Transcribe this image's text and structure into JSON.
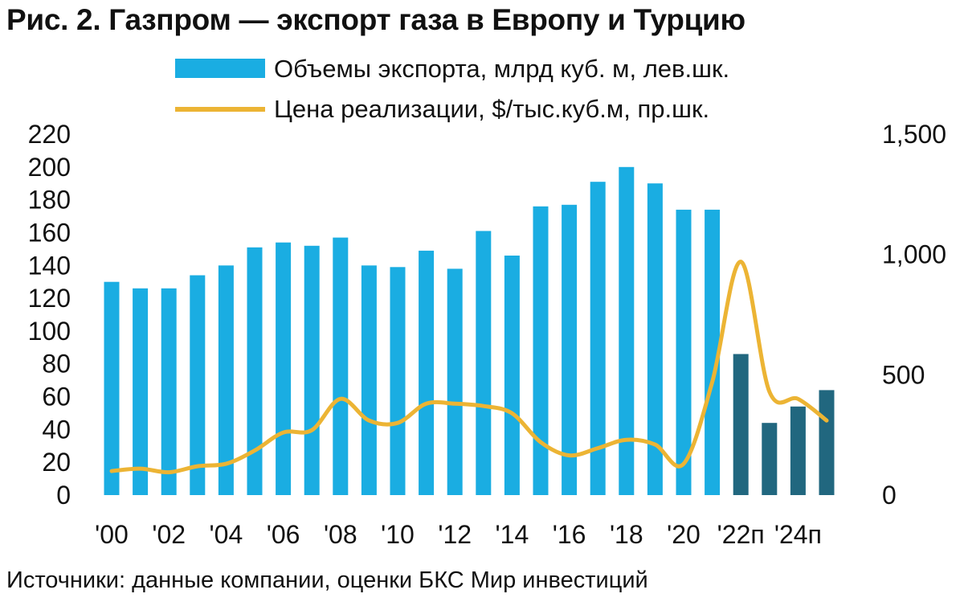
{
  "title": "Рис. 2. Газпром — экспорт газа в Европу и Турцию",
  "source": "Источники: данные компании, оценки БКС Мир инвестиций",
  "chart_data": {
    "type": "bar",
    "title": "Рис. 2. Газпром — экспорт газа в Европу и Турцию",
    "legend_position": "top",
    "grid": false,
    "x": [
      "2000",
      "2001",
      "2002",
      "2003",
      "2004",
      "2005",
      "2006",
      "2007",
      "2008",
      "2009",
      "2010",
      "2011",
      "2012",
      "2013",
      "2014",
      "2015",
      "2016",
      "2017",
      "2018",
      "2019",
      "2020",
      "2021",
      "2022",
      "2023",
      "2024",
      "2025"
    ],
    "x_tick_labels": [
      "'00",
      "'02",
      "'04",
      "'06",
      "'08",
      "'10",
      "'12",
      "'14",
      "'16",
      "'18",
      "'20",
      "'22п",
      "'24п"
    ],
    "forecast_from": "2022",
    "y_left": {
      "ylim": [
        0,
        220
      ],
      "ticks": [
        "0",
        "20",
        "40",
        "60",
        "80",
        "100",
        "120",
        "140",
        "160",
        "180",
        "200",
        "220"
      ]
    },
    "y_right": {
      "ylim": [
        0,
        1500
      ],
      "ticks": [
        "0",
        "500",
        "1,000",
        "1,500"
      ]
    },
    "series": [
      {
        "name": "Объемы экспорта, млрд куб. м, лев.шк.",
        "type": "bar",
        "axis": "left",
        "color": "#1aade2",
        "forecast_color": "#21677f",
        "values": [
          130,
          126,
          126,
          134,
          140,
          151,
          154,
          152,
          157,
          140,
          139,
          149,
          138,
          161,
          146,
          176,
          177,
          191,
          200,
          190,
          174,
          174,
          86,
          44,
          54,
          64
        ]
      },
      {
        "name": "Цена реализации, $/тыс.куб.м, пр.шк.",
        "type": "line",
        "axis": "right",
        "color": "#ecb434",
        "values": [
          100,
          110,
          95,
          120,
          130,
          185,
          260,
          270,
          400,
          310,
          300,
          380,
          380,
          370,
          340,
          220,
          165,
          195,
          230,
          210,
          130,
          470,
          970,
          430,
          400,
          310
        ]
      }
    ]
  }
}
